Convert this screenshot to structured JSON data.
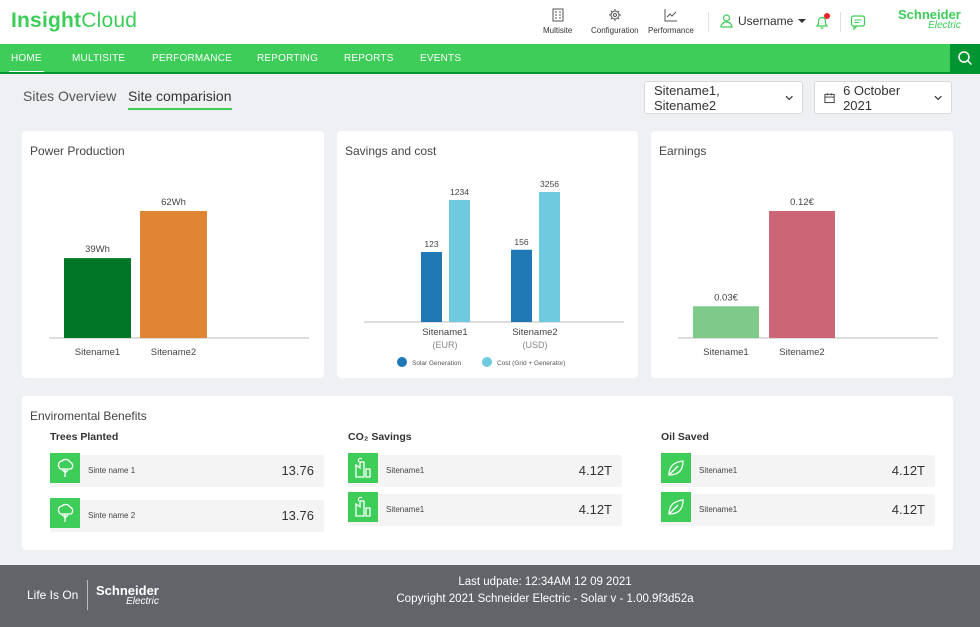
{
  "app": {
    "logo_bold": "Insight",
    "logo_light": "Cloud"
  },
  "header": {
    "items": [
      {
        "label": "Multisite",
        "icon": "building-icon"
      },
      {
        "label": "Configuration",
        "icon": "gear-icon"
      },
      {
        "label": "Performance",
        "icon": "line-chart-icon"
      }
    ],
    "username": "Username",
    "brand_main": "Schneider",
    "brand_sub": "Electric"
  },
  "nav": {
    "items": [
      "HOME",
      "MULTISITE",
      "PERFORMANCE",
      "REPORTING",
      "REPORTS",
      "EVENTS"
    ],
    "active": "HOME"
  },
  "subtabs": {
    "overview": "Sites Overview",
    "comparison": "Site comparision"
  },
  "filters": {
    "sites": "Sitename1, Sitename2",
    "date": "6 October 2021"
  },
  "colors": {
    "brand_green": "#3dcd58",
    "dark_green": "#009530"
  },
  "chart_data": [
    {
      "type": "bar",
      "title": "Power Production",
      "categories": [
        "Sitename1",
        "Sitename2"
      ],
      "values": [
        39,
        62
      ],
      "value_labels": [
        "39Wh",
        "62Wh"
      ],
      "colors": [
        "#007626",
        "#e08534"
      ],
      "ylim": [
        0,
        75
      ]
    },
    {
      "type": "bar",
      "title": "Savings and cost",
      "categories": [
        "Sitename1",
        "Sitename2"
      ],
      "category_units": [
        "(EUR)",
        "(USD)"
      ],
      "series": [
        {
          "name": "Solar Generation",
          "values": [
            123,
            156
          ],
          "color": "#1f77b4"
        },
        {
          "name": "Cost (Grid + Generator)",
          "values": [
            1234,
            3256
          ],
          "color": "#6fcae0"
        }
      ],
      "display_scale_note": "bar heights are not proportional to values in the original"
    },
    {
      "type": "bar",
      "title": "Earnings",
      "categories": [
        "Sitename1",
        "Sitename2"
      ],
      "values": [
        0.03,
        0.12
      ],
      "value_labels": [
        "0.03€",
        "0.12€"
      ],
      "colors": [
        "#7fca8a",
        "#cc6677"
      ]
    }
  ],
  "environment": {
    "title": "Enviromental Benefits",
    "columns": [
      {
        "title": "Trees Planted",
        "icon": "tree-icon",
        "rows": [
          {
            "label": "Sinte name 1",
            "value": "13.76"
          },
          {
            "label": "Sinte name 2",
            "value": "13.76"
          }
        ]
      },
      {
        "title": "CO₂ Savings",
        "icon": "factory-icon",
        "rows": [
          {
            "label": "Sitename1",
            "value": "4.12T"
          },
          {
            "label": "Sitename1",
            "value": "4.12T"
          }
        ]
      },
      {
        "title": "Oil Saved",
        "icon": "leaf-icon",
        "rows": [
          {
            "label": "Sitename1",
            "value": "4.12T"
          },
          {
            "label": "Sitename1",
            "value": "4.12T"
          }
        ]
      }
    ]
  },
  "footer": {
    "tagline": "Life Is On",
    "brand_main": "Schneider",
    "brand_sub": "Electric",
    "last_update": "Last udpate: 12:34AM 12 09 2021",
    "copyright": "Copyright 2021 Schneider Electric - Solar v - 1.00.9f3d52a"
  }
}
